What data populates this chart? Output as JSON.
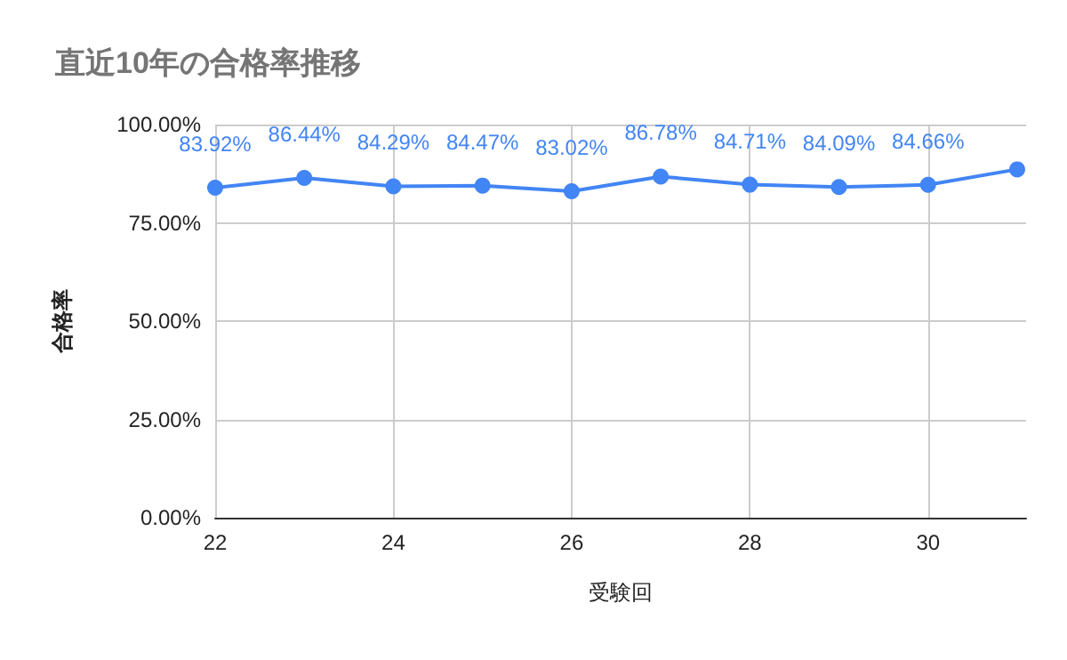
{
  "chart_data": {
    "type": "line",
    "title": "直近10年の合格率推移",
    "xlabel": "受験回",
    "ylabel": "合格率",
    "x": [
      22,
      23,
      24,
      25,
      26,
      27,
      28,
      29,
      30,
      31
    ],
    "series": [
      {
        "color": "#4285f4",
        "values": [
          83.92,
          86.44,
          84.29,
          84.47,
          83.02,
          86.78,
          84.71,
          84.09,
          84.66,
          88.6
        ],
        "value_labels": [
          "83.92%",
          "86.44%",
          "84.29%",
          "84.47%",
          "83.02%",
          "86.78%",
          "84.71%",
          "84.09%",
          "84.66%",
          null
        ]
      }
    ],
    "xlim": [
      22,
      31.1
    ],
    "xticks": [
      22,
      24,
      26,
      28,
      30
    ],
    "ylim": [
      0,
      100
    ],
    "yticks": [
      {
        "value": 0,
        "label": "0.00%"
      },
      {
        "value": 25,
        "label": "25.00%"
      },
      {
        "value": 50,
        "label": "50.00%"
      },
      {
        "value": 75,
        "label": "75.00%"
      },
      {
        "value": 100,
        "label": "100.00%"
      }
    ],
    "grid": true,
    "marker": "circle",
    "line_style": "solid"
  }
}
